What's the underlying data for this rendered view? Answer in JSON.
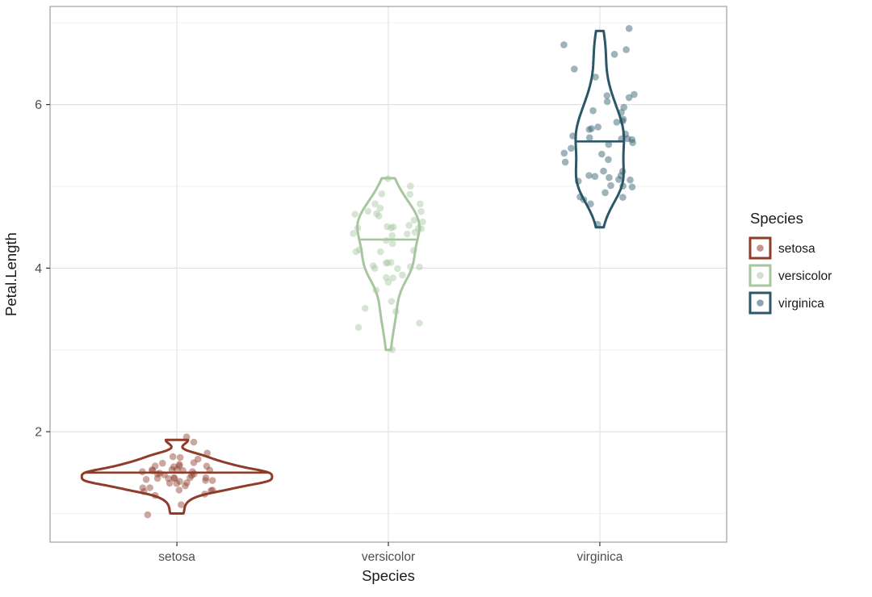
{
  "figure": {
    "background": "#ffffff"
  },
  "chart_data": {
    "type": "violin",
    "title": "",
    "xlabel": "Species",
    "ylabel": "Petal.Length",
    "categories": [
      "setosa",
      "versicolor",
      "virginica"
    ],
    "ylim": [
      0.65,
      7.2
    ],
    "yticks": [
      2,
      4,
      6
    ],
    "y_minor_ticks": [
      1,
      3,
      5,
      7
    ],
    "grid": true,
    "legend_position": "right",
    "violin_max_width": 0.9,
    "jitter_width": 0.17,
    "jitter_height": 0.04,
    "point_opacity": 0.45,
    "quantile_drawn": 0.5,
    "legend": {
      "title": "Species",
      "entries": [
        {
          "label": "setosa",
          "color": "#8f3c2b"
        },
        {
          "label": "versicolor",
          "color": "#a7c6a0"
        },
        {
          "label": "virginica",
          "color": "#2b5769"
        }
      ]
    },
    "series": [
      {
        "name": "setosa",
        "color": "#8f3c2b",
        "median": 1.5,
        "min": 1.0,
        "max": 1.9,
        "values": [
          1.4,
          1.4,
          1.3,
          1.5,
          1.4,
          1.7,
          1.4,
          1.5,
          1.4,
          1.5,
          1.5,
          1.6,
          1.4,
          1.1,
          1.2,
          1.5,
          1.3,
          1.4,
          1.7,
          1.5,
          1.7,
          1.5,
          1.0,
          1.7,
          1.9,
          1.6,
          1.6,
          1.5,
          1.4,
          1.6,
          1.6,
          1.5,
          1.5,
          1.4,
          1.5,
          1.2,
          1.3,
          1.4,
          1.3,
          1.5,
          1.3,
          1.3,
          1.3,
          1.6,
          1.9,
          1.4,
          1.6,
          1.4,
          1.5,
          1.4
        ]
      },
      {
        "name": "versicolor",
        "color": "#a7c6a0",
        "median": 4.35,
        "min": 3.0,
        "max": 5.1,
        "values": [
          4.7,
          4.5,
          4.9,
          4.0,
          4.6,
          4.5,
          4.7,
          3.3,
          4.6,
          3.9,
          3.5,
          4.2,
          4.0,
          4.7,
          3.6,
          4.4,
          4.5,
          4.1,
          4.5,
          3.9,
          4.8,
          4.0,
          4.9,
          4.7,
          4.3,
          4.4,
          4.8,
          5.0,
          4.5,
          3.5,
          3.8,
          3.7,
          3.9,
          5.1,
          4.5,
          4.5,
          4.7,
          4.4,
          4.1,
          4.0,
          4.4,
          4.6,
          4.0,
          3.3,
          4.2,
          4.2,
          4.2,
          4.3,
          3.0,
          4.1
        ]
      },
      {
        "name": "virginica",
        "color": "#2b5769",
        "median": 5.55,
        "min": 4.5,
        "max": 6.9,
        "values": [
          6.0,
          5.1,
          5.9,
          5.6,
          5.8,
          6.6,
          4.5,
          6.3,
          5.8,
          6.1,
          5.1,
          5.3,
          5.5,
          5.0,
          5.1,
          5.3,
          5.5,
          6.7,
          6.9,
          5.0,
          5.7,
          4.9,
          6.7,
          4.9,
          5.7,
          6.0,
          4.8,
          4.9,
          5.6,
          5.8,
          6.1,
          6.4,
          5.6,
          5.1,
          5.6,
          6.1,
          5.6,
          5.5,
          4.8,
          5.4,
          5.6,
          5.1,
          5.1,
          5.9,
          5.7,
          5.2,
          5.0,
          5.2,
          5.4,
          5.1
        ]
      }
    ],
    "theme": {
      "panel_background": "#ffffff",
      "panel_border": "#9e9e9e",
      "grid_major": "#e3e3e3",
      "grid_minor": "#f1f1f1",
      "axis_text_color": "#4d4d4d",
      "axis_title_color": "#1a1a1a",
      "tick_color": "#333333",
      "legend_text_color": "#1a1a1a"
    }
  }
}
